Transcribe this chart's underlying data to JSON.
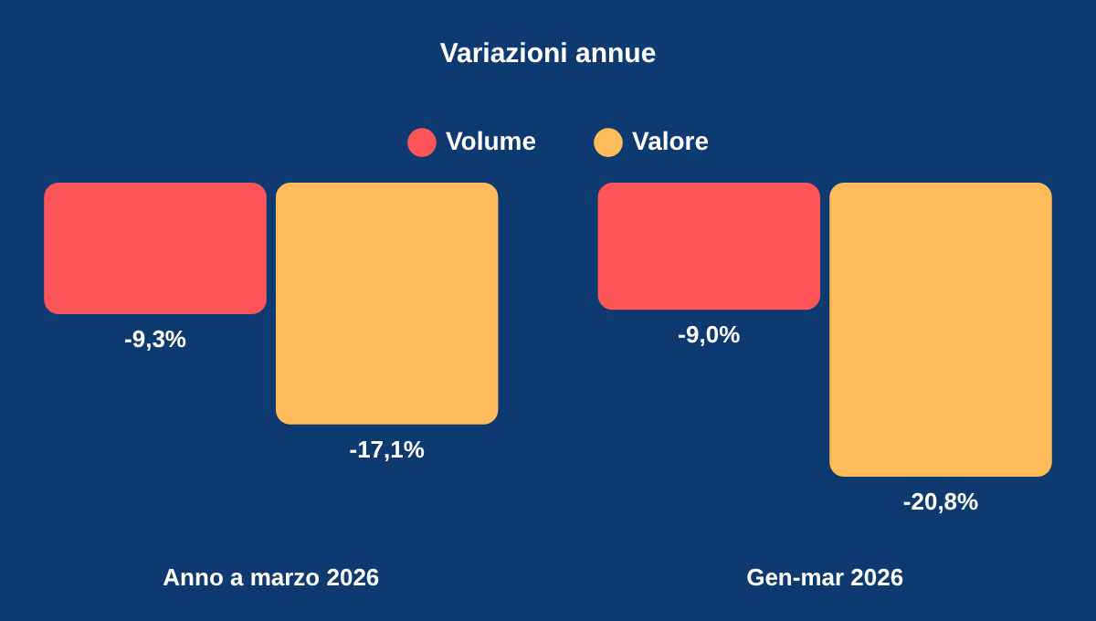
{
  "chart_data": {
    "type": "bar",
    "title": "Variazioni annue",
    "categories": [
      "Anno a marzo 2026",
      "Gen-mar 2026"
    ],
    "series": [
      {
        "name": "Volume",
        "color": "#fd5457",
        "values": [
          -9.3,
          -9.0
        ],
        "value_labels": [
          "-9,3%",
          "-9,0%"
        ]
      },
      {
        "name": "Valore",
        "color": "#fdbb5a",
        "values": [
          -17.1,
          -20.8
        ],
        "value_labels": [
          "-17,1%",
          "-20,8%"
        ]
      }
    ],
    "legend": "top",
    "grid": false
  }
}
